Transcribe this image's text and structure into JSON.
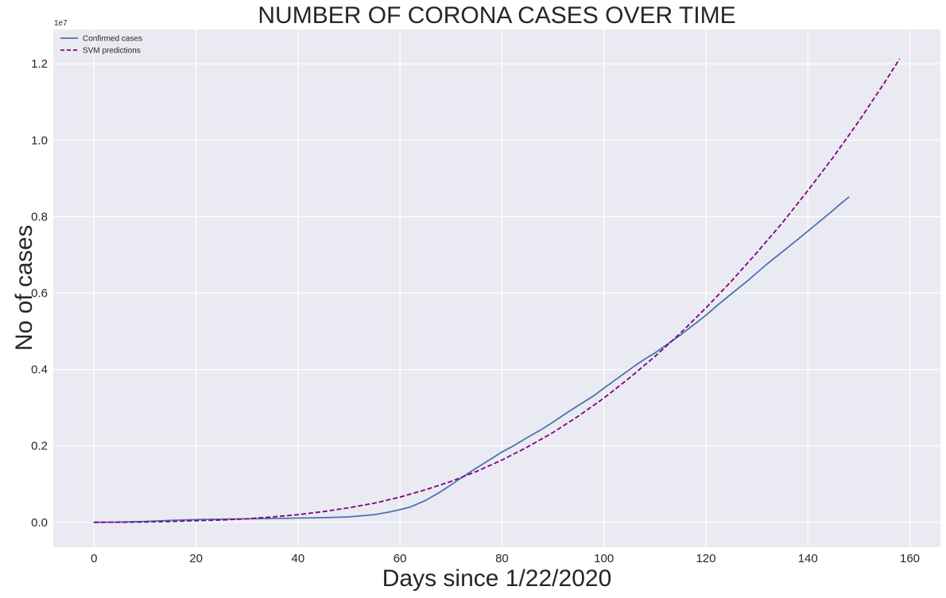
{
  "chart_data": {
    "type": "line",
    "title": "NUMBER OF CORONA CASES OVER TIME",
    "xlabel": "Days since 1/22/2020",
    "ylabel": "No of cases",
    "y_scale_label": "1e7",
    "xlim": [
      -8,
      166
    ],
    "ylim": [
      -650000,
      12900000
    ],
    "x_ticks": [
      0,
      20,
      40,
      60,
      80,
      100,
      120,
      140,
      160
    ],
    "x_tick_labels": [
      "0",
      "20",
      "40",
      "60",
      "80",
      "100",
      "120",
      "140",
      "160"
    ],
    "y_ticks": [
      0,
      2000000,
      4000000,
      6000000,
      8000000,
      10000000,
      12000000
    ],
    "y_tick_labels": [
      "0.0",
      "0.2",
      "0.4",
      "0.6",
      "0.8",
      "1.0",
      "1.2"
    ],
    "grid": true,
    "background_color": "#EAEAF2",
    "legend_position": "top-left",
    "series": [
      {
        "name": "Confirmed cases",
        "color": "#4C72B0",
        "style": "solid",
        "x": [
          0,
          5,
          10,
          15,
          20,
          25,
          30,
          35,
          40,
          45,
          50,
          55,
          58,
          60,
          62,
          65,
          68,
          70,
          72,
          75,
          78,
          80,
          82,
          85,
          88,
          90,
          92,
          95,
          98,
          100,
          103,
          106,
          108,
          110,
          112,
          115,
          118,
          120,
          122,
          125,
          128,
          130,
          132,
          135,
          138,
          140,
          142,
          145,
          146,
          147,
          148
        ],
        "y": [
          0,
          5000,
          20000,
          50000,
          70000,
          80000,
          90000,
          100000,
          110000,
          120000,
          140000,
          200000,
          270000,
          330000,
          400000,
          570000,
          800000,
          980000,
          1160000,
          1420000,
          1670000,
          1840000,
          1980000,
          2220000,
          2450000,
          2620000,
          2800000,
          3060000,
          3310000,
          3510000,
          3800000,
          4090000,
          4270000,
          4430000,
          4620000,
          4900000,
          5210000,
          5420000,
          5650000,
          5980000,
          6300000,
          6530000,
          6760000,
          7080000,
          7400000,
          7620000,
          7840000,
          8170000,
          8290000,
          8400000,
          8510000
        ]
      },
      {
        "name": "SVM predictions",
        "color": "#800080",
        "style": "dashed",
        "x": [
          0,
          5,
          10,
          15,
          20,
          25,
          30,
          35,
          40,
          45,
          50,
          55,
          60,
          65,
          70,
          75,
          80,
          85,
          90,
          95,
          100,
          105,
          110,
          115,
          120,
          125,
          130,
          135,
          140,
          145,
          150,
          155,
          158
        ],
        "y": [
          0,
          2000,
          8000,
          20000,
          40000,
          60000,
          90000,
          140000,
          200000,
          280000,
          380000,
          500000,
          660000,
          850000,
          1070000,
          1330000,
          1630000,
          1970000,
          2350000,
          2780000,
          3250000,
          3780000,
          4340000,
          4950000,
          5610000,
          6310000,
          7060000,
          7840000,
          8680000,
          9560000,
          10500000,
          11500000,
          12130000
        ]
      }
    ]
  }
}
